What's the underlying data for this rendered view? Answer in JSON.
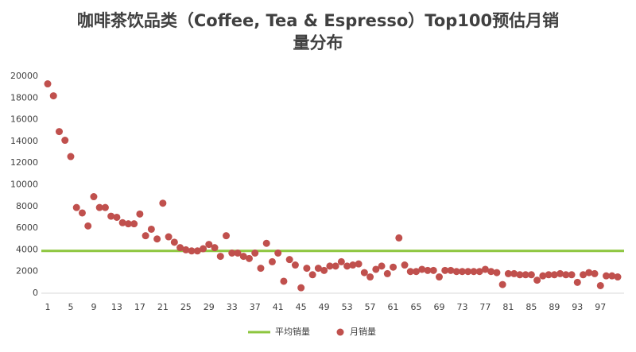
{
  "chart_data": {
    "type": "scatter",
    "title": "咖啡茶饮品类（Coffee, Tea & Espresso）Top100预估月销量分布",
    "x": [
      1,
      2,
      3,
      4,
      5,
      6,
      7,
      8,
      9,
      10,
      11,
      12,
      13,
      14,
      15,
      16,
      17,
      18,
      19,
      20,
      21,
      22,
      23,
      24,
      25,
      26,
      27,
      28,
      29,
      30,
      31,
      32,
      33,
      34,
      35,
      36,
      37,
      38,
      39,
      40,
      41,
      42,
      43,
      44,
      45,
      46,
      47,
      48,
      49,
      50,
      51,
      52,
      53,
      54,
      55,
      56,
      57,
      58,
      59,
      60,
      61,
      62,
      63,
      64,
      65,
      66,
      67,
      68,
      69,
      70,
      71,
      72,
      73,
      74,
      75,
      76,
      77,
      78,
      79,
      80,
      81,
      82,
      83,
      84,
      85,
      86,
      87,
      88,
      89,
      90,
      91,
      92,
      93,
      94,
      95,
      96,
      97,
      98,
      99,
      100
    ],
    "series": [
      {
        "name": "月销量",
        "color": "#c0504d",
        "values": [
          19300,
          18200,
          14900,
          14100,
          12600,
          7900,
          7400,
          6200,
          8900,
          7900,
          7900,
          7100,
          7000,
          6500,
          6400,
          6400,
          7300,
          5300,
          5900,
          5000,
          8300,
          5200,
          4700,
          4200,
          4000,
          3900,
          3900,
          4100,
          4500,
          4200,
          3400,
          5300,
          3700,
          3700,
          3400,
          3200,
          3700,
          2300,
          4600,
          2900,
          3700,
          1100,
          3100,
          2600,
          500,
          2300,
          1700,
          2300,
          2100,
          2500,
          2500,
          2900,
          2500,
          2600,
          2700,
          1900,
          1500,
          2200,
          2500,
          1800,
          2400,
          5100,
          2600,
          2000,
          2000,
          2200,
          2100,
          2100,
          1500,
          2100,
          2100,
          2000,
          2000,
          2000,
          2000,
          2000,
          2200,
          2000,
          1900,
          800,
          1800,
          1800,
          1700,
          1700,
          1700,
          1200,
          1600,
          1700,
          1700,
          1800,
          1700,
          1700,
          1000,
          1700,
          1900,
          1800,
          700,
          1600,
          1600,
          1500
        ]
      }
    ],
    "average_line": {
      "name": "平均销量",
      "value": 3900,
      "color": "#8dc63f"
    },
    "xlim": [
      1,
      100
    ],
    "xticks": [
      1,
      5,
      9,
      13,
      17,
      21,
      25,
      29,
      33,
      37,
      41,
      45,
      49,
      53,
      57,
      61,
      65,
      69,
      73,
      77,
      81,
      85,
      89,
      93,
      97
    ],
    "ylim": [
      0,
      20000
    ],
    "yticks": [
      0,
      2000,
      4000,
      6000,
      8000,
      10000,
      12000,
      14000,
      16000,
      18000,
      20000
    ],
    "grid": false,
    "legend": "bottom"
  }
}
